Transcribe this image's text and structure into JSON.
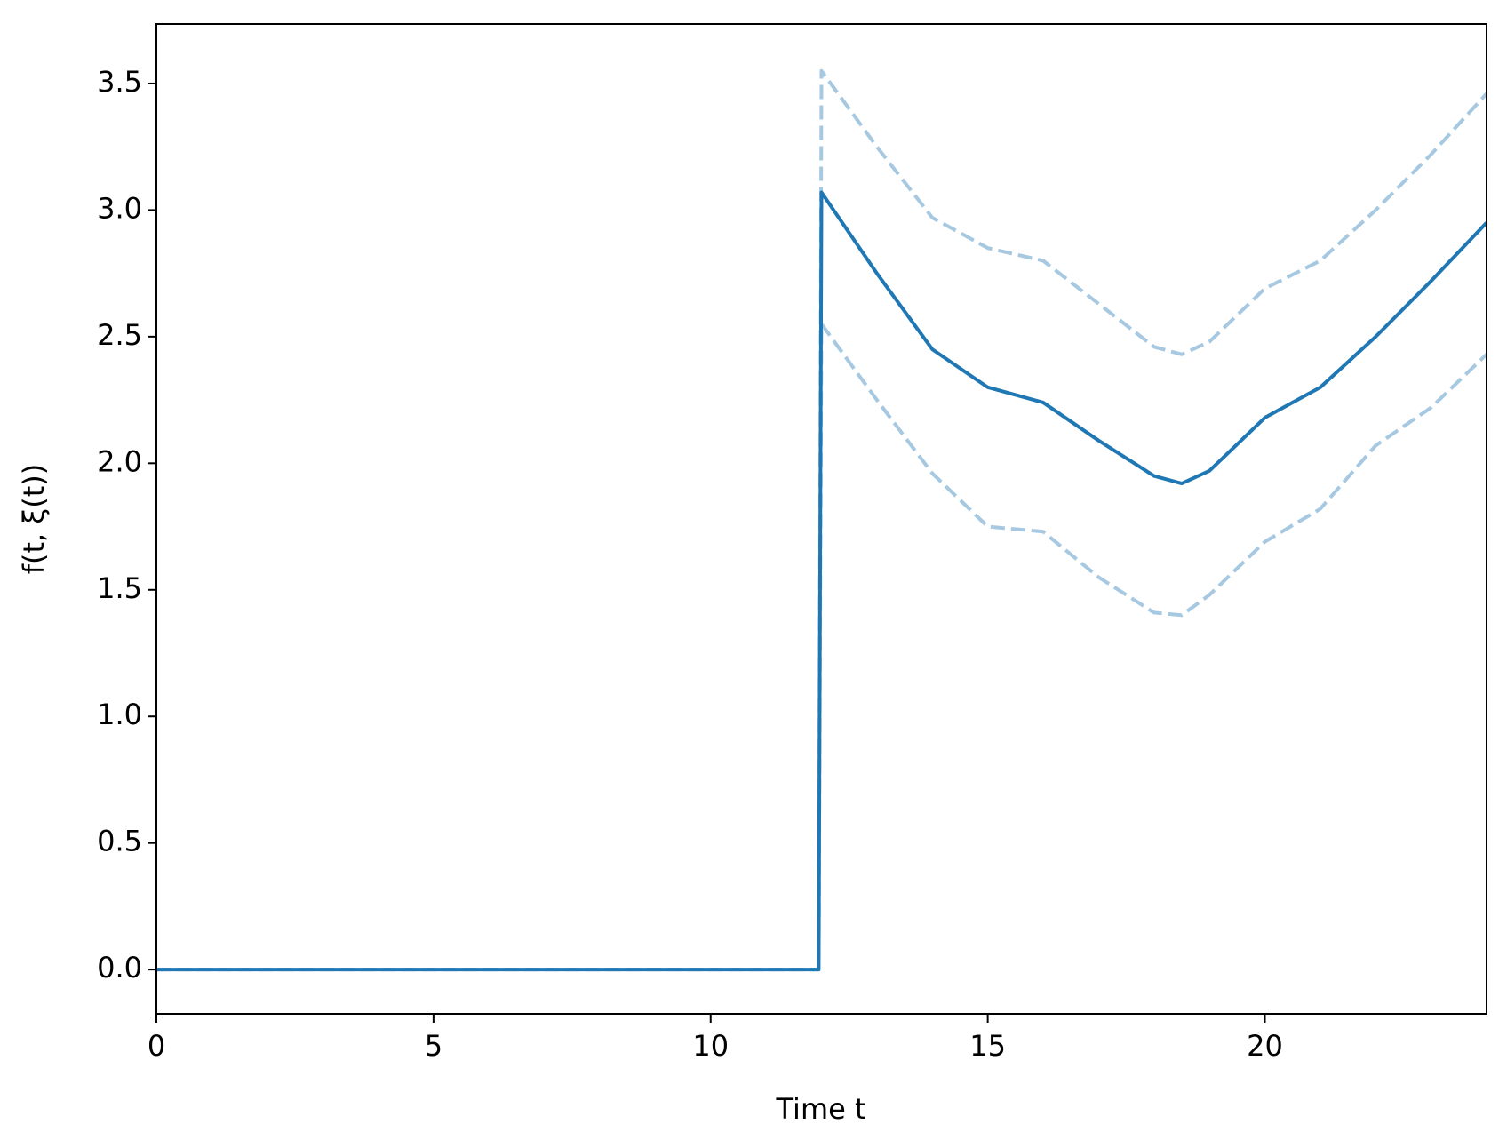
{
  "chart_data": {
    "type": "line",
    "x_label": "Time t",
    "y_label": "f(t, ξ(t))",
    "x": [
      0,
      11.95,
      12,
      13,
      14,
      15,
      16,
      17,
      18,
      18.5,
      19,
      20,
      21,
      22,
      23,
      24
    ],
    "series": [
      {
        "color": "#1f77b4",
        "dash": "solid",
        "values": [
          0,
          0,
          3.07,
          2.75,
          2.45,
          2.3,
          2.24,
          2.09,
          1.95,
          1.92,
          1.97,
          2.18,
          2.3,
          2.5,
          2.72,
          2.95
        ]
      },
      {
        "color": "#a6c8e1",
        "dash": "dashed",
        "values": [
          0,
          0,
          3.55,
          3.25,
          2.97,
          2.85,
          2.8,
          2.63,
          2.46,
          2.43,
          2.48,
          2.69,
          2.8,
          3.0,
          3.22,
          3.46
        ]
      },
      {
        "color": "#a6c8e1",
        "dash": "dashed",
        "values": [
          0,
          0,
          2.55,
          2.25,
          1.96,
          1.75,
          1.73,
          1.55,
          1.41,
          1.4,
          1.48,
          1.69,
          1.82,
          2.07,
          2.22,
          2.43
        ]
      }
    ],
    "xlim": [
      0,
      24
    ],
    "xticks": [
      0,
      5,
      10,
      15,
      20
    ],
    "ylim": [
      -0.175,
      3.735
    ],
    "yticks": [
      {
        "value": 0,
        "label": "0.0"
      },
      {
        "value": 0.5,
        "label": "0.5"
      },
      {
        "value": 1,
        "label": "1.0"
      },
      {
        "value": 1.5,
        "label": "1.5"
      },
      {
        "value": 2,
        "label": "2.0"
      },
      {
        "value": 2.5,
        "label": "2.5"
      },
      {
        "value": 3,
        "label": "3.0"
      },
      {
        "value": 3.5,
        "label": "3.5"
      }
    ],
    "grid": false
  }
}
